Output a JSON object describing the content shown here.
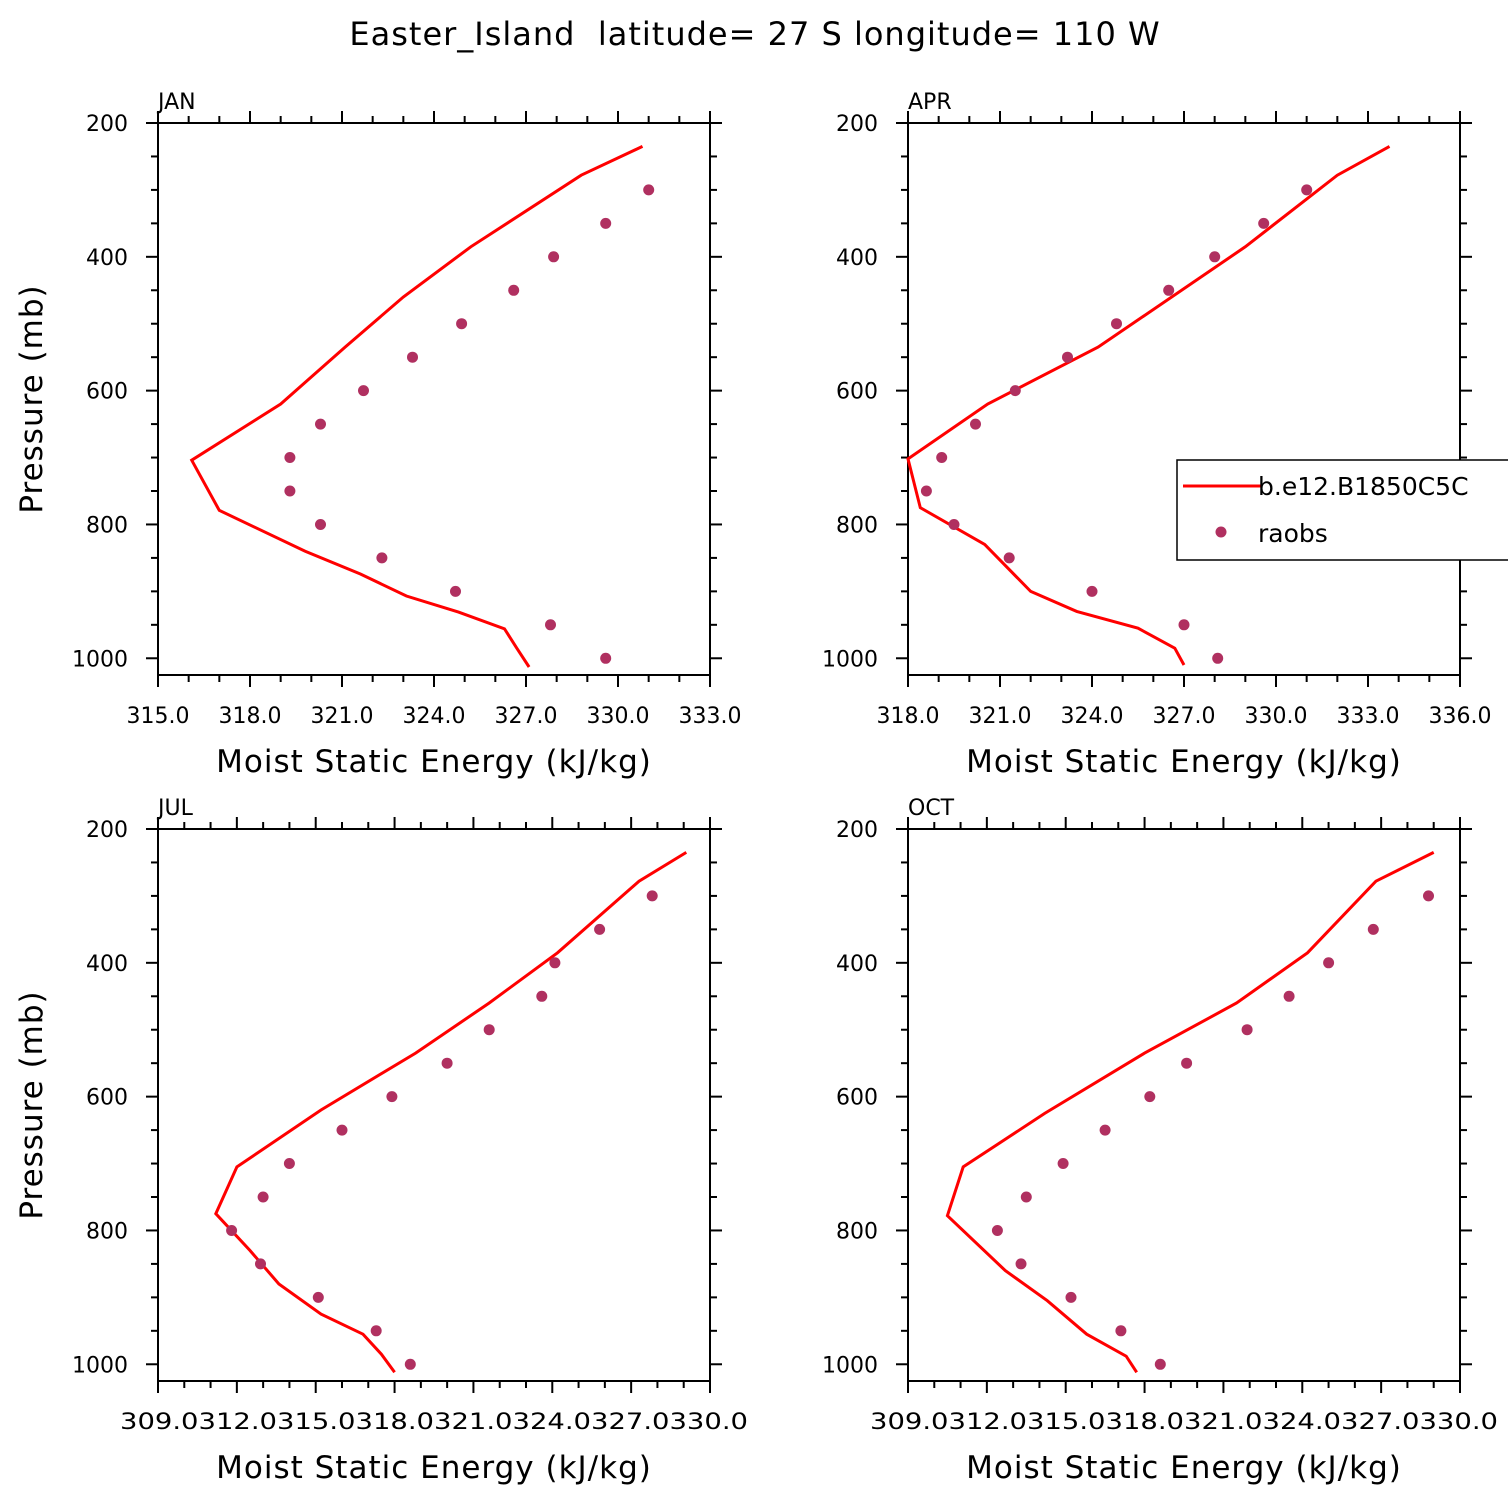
{
  "figure_title": "Easter_Island  latitude= 27 S longitude= 110 W",
  "legend": {
    "model_label": "b.e12.B1850C5C",
    "obs_label": "raobs"
  },
  "colors": {
    "model_line": "#ff0000",
    "obs_marker": "#b03060",
    "axes": "#000000"
  },
  "chart_data": [
    {
      "type": "line",
      "title": "JAN",
      "xlabel": "Moist Static Energy (kJ/kg)",
      "ylabel": "Pressure (mb)",
      "xlim": [
        315.0,
        333.0
      ],
      "ylim": [
        1025,
        200
      ],
      "x_ticks": [
        315.0,
        318.0,
        321.0,
        324.0,
        327.0,
        330.0,
        333.0
      ],
      "x_tick_labels": [
        "315.0",
        "318.0",
        "321.0",
        "324.0",
        "327.0",
        "330.0",
        "333.0"
      ],
      "y_ticks": [
        200,
        400,
        600,
        800,
        1000
      ],
      "y_tick_labels": [
        "200",
        "400",
        "600",
        "800",
        "1000"
      ],
      "show_y_axis_label": true,
      "series": [
        {
          "name": "b.e12.B1850C5C",
          "kind": "line",
          "x": [
            327.1,
            326.7,
            326.3,
            324.8,
            323.1,
            321.6,
            319.8,
            317.0,
            316.1,
            319.0,
            321.1,
            323.0,
            325.2,
            328.8,
            330.8
          ],
          "y": [
            1013,
            985,
            956,
            931,
            907,
            874,
            840,
            779,
            704,
            620,
            535,
            460,
            385,
            278,
            235
          ]
        },
        {
          "name": "raobs",
          "kind": "marker",
          "x": [
            329.6,
            327.8,
            324.7,
            322.3,
            320.3,
            319.3,
            319.3,
            320.3,
            321.7,
            323.3,
            324.9,
            326.6,
            327.9,
            329.6,
            331.0
          ],
          "y": [
            1000,
            950,
            900,
            850,
            800,
            750,
            700,
            650,
            600,
            550,
            500,
            450,
            400,
            350,
            300
          ]
        }
      ]
    },
    {
      "type": "line",
      "title": "APR",
      "xlabel": "Moist Static Energy (kJ/kg)",
      "ylabel": "",
      "xlim": [
        318.0,
        336.0
      ],
      "ylim": [
        1025,
        200
      ],
      "x_ticks": [
        318.0,
        321.0,
        324.0,
        327.0,
        330.0,
        333.0,
        336.0
      ],
      "x_tick_labels": [
        "318.0",
        "321.0",
        "324.0",
        "327.0",
        "330.0",
        "333.0",
        "336.0"
      ],
      "y_ticks": [
        200,
        400,
        600,
        800,
        1000
      ],
      "y_tick_labels": [
        "200",
        "400",
        "600",
        "800",
        "1000"
      ],
      "show_y_axis_label": false,
      "series": [
        {
          "name": "b.e12.B1850C5C",
          "kind": "line",
          "x": [
            327.0,
            326.7,
            325.5,
            323.5,
            322.0,
            320.5,
            318.4,
            318.0,
            320.6,
            324.2,
            329.0,
            332.0,
            333.7
          ],
          "y": [
            1010,
            985,
            955,
            930,
            900,
            830,
            775,
            702,
            620,
            535,
            385,
            278,
            235
          ]
        },
        {
          "name": "raobs",
          "kind": "marker",
          "x": [
            328.1,
            327.0,
            324.0,
            321.3,
            319.5,
            318.6,
            319.1,
            320.2,
            321.5,
            323.2,
            324.8,
            326.5,
            328.0,
            329.6,
            331.0
          ],
          "y": [
            1000,
            950,
            900,
            850,
            800,
            750,
            700,
            650,
            600,
            550,
            500,
            450,
            400,
            350,
            300
          ]
        }
      ]
    },
    {
      "type": "line",
      "title": "JUL",
      "xlabel": "Moist Static Energy (kJ/kg)",
      "ylabel": "Pressure (mb)",
      "xlim": [
        309.0,
        330.0
      ],
      "ylim": [
        1025,
        200
      ],
      "x_ticks": [
        309.0,
        312.0,
        315.0,
        318.0,
        321.0,
        324.0,
        327.0,
        330.0
      ],
      "x_tick_labels": [
        "309.0",
        "312.0",
        "315.0",
        "318.0",
        "321.0",
        "324.0",
        "327.0",
        "330.0"
      ],
      "x_tick_label_text": "309.0312.0315.0318.0321.0324.0327.0330.0",
      "y_ticks": [
        200,
        400,
        600,
        800,
        1000
      ],
      "y_tick_labels": [
        "200",
        "400",
        "600",
        "800",
        "1000"
      ],
      "show_y_axis_label": true,
      "series": [
        {
          "name": "b.e12.B1850C5C",
          "kind": "line",
          "x": [
            318.0,
            317.5,
            316.8,
            315.2,
            313.6,
            312.5,
            311.2,
            312.0,
            315.2,
            318.8,
            321.6,
            324.2,
            327.3,
            329.1
          ],
          "y": [
            1012,
            985,
            955,
            925,
            880,
            830,
            775,
            705,
            620,
            535,
            460,
            385,
            278,
            235
          ]
        },
        {
          "name": "raobs",
          "kind": "marker",
          "x": [
            318.6,
            317.3,
            315.1,
            312.9,
            311.8,
            313.0,
            314.0,
            316.0,
            317.9,
            320.0,
            321.6,
            323.6,
            324.1,
            325.8,
            327.8
          ],
          "y": [
            1000,
            950,
            900,
            850,
            800,
            750,
            700,
            650,
            600,
            550,
            500,
            450,
            400,
            350,
            300
          ]
        }
      ]
    },
    {
      "type": "line",
      "title": "OCT",
      "xlabel": "Moist Static Energy (kJ/kg)",
      "ylabel": "",
      "xlim": [
        309.0,
        330.0
      ],
      "ylim": [
        1025,
        200
      ],
      "x_ticks": [
        309.0,
        312.0,
        315.0,
        318.0,
        321.0,
        324.0,
        327.0,
        330.0
      ],
      "x_tick_labels": [
        "309.0",
        "312.0",
        "315.0",
        "318.0",
        "321.0",
        "324.0",
        "327.0",
        "330.0"
      ],
      "x_tick_label_text": "309.0312.0315.0318.0321.0324.0327.0330.0",
      "y_ticks": [
        200,
        400,
        600,
        800,
        1000
      ],
      "y_tick_labels": [
        "200",
        "400",
        "600",
        "800",
        "1000"
      ],
      "show_y_axis_label": false,
      "series": [
        {
          "name": "b.e12.B1850C5C",
          "kind": "line",
          "x": [
            317.7,
            317.3,
            315.8,
            314.3,
            312.7,
            310.5,
            311.1,
            314.2,
            318.0,
            321.5,
            324.2,
            326.8,
            329.0
          ],
          "y": [
            1012,
            988,
            955,
            905,
            860,
            778,
            705,
            625,
            535,
            460,
            385,
            278,
            235
          ]
        },
        {
          "name": "raobs",
          "kind": "marker",
          "x": [
            318.6,
            317.1,
            315.2,
            313.3,
            312.4,
            313.5,
            314.9,
            316.5,
            318.2,
            319.6,
            321.9,
            323.5,
            325.0,
            326.7,
            328.8
          ],
          "y": [
            1000,
            950,
            900,
            850,
            800,
            750,
            700,
            650,
            600,
            550,
            500,
            450,
            400,
            350,
            300
          ]
        }
      ]
    }
  ]
}
